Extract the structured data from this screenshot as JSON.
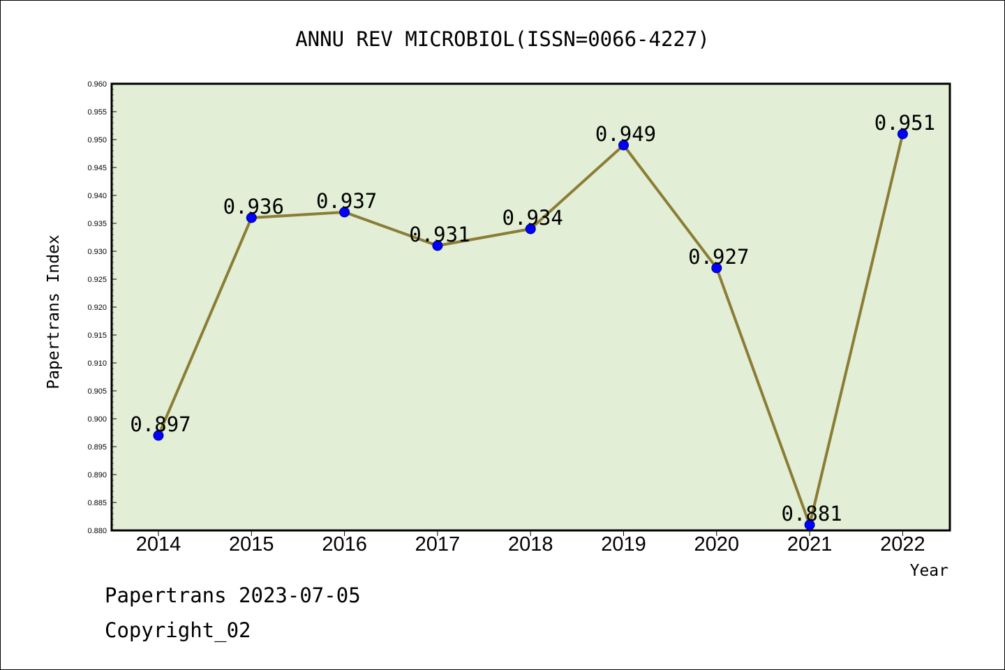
{
  "chart_data": {
    "type": "line",
    "title": "ANNU REV MICROBIOL(ISSN=0066-4227)",
    "xlabel": "Year",
    "ylabel": "Papertrans Index",
    "categories": [
      "2014",
      "2015",
      "2016",
      "2017",
      "2018",
      "2019",
      "2020",
      "2021",
      "2022"
    ],
    "values": [
      0.897,
      0.936,
      0.937,
      0.931,
      0.934,
      0.949,
      0.927,
      0.881,
      0.951
    ],
    "data_labels": [
      "0.897",
      "0.936",
      "0.937",
      "0.931",
      "0.934",
      "0.949",
      "0.927",
      "0.881",
      "0.951"
    ],
    "ylim": [
      0.88,
      0.96
    ],
    "yticks": [
      "0.880",
      "0.885",
      "0.890",
      "0.895",
      "0.900",
      "0.905",
      "0.910",
      "0.915",
      "0.920",
      "0.925",
      "0.930",
      "0.935",
      "0.940",
      "0.945",
      "0.950",
      "0.955",
      "0.960"
    ],
    "grid": false,
    "colors": {
      "plot_background": "#e2efd6",
      "line": "#8b7d35",
      "marker": "#0000ff"
    }
  },
  "footer": {
    "line1": "Papertrans 2023-07-05",
    "line2": "Copyright_02"
  }
}
